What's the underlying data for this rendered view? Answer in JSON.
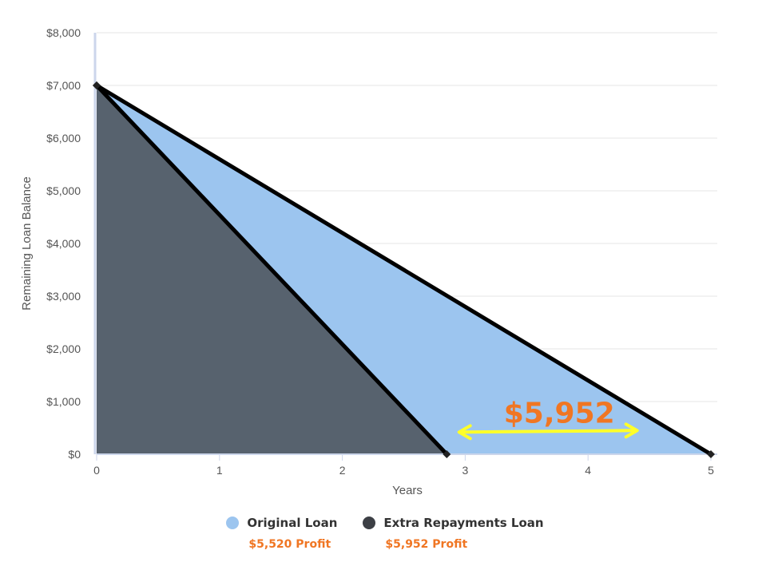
{
  "chart_data": {
    "type": "area",
    "xlabel": "Years",
    "ylabel": "Remaining Loan Balance",
    "xlim": [
      0,
      5
    ],
    "ylim": [
      0,
      8000
    ],
    "x_ticks": [
      "0",
      "1",
      "2",
      "3",
      "4",
      "5"
    ],
    "y_ticks": [
      "$0",
      "$1,000",
      "$2,000",
      "$3,000",
      "$4,000",
      "$5,000",
      "$6,000",
      "$7,000",
      "$8,000"
    ],
    "y_tick_values": [
      0,
      1000,
      2000,
      3000,
      4000,
      5000,
      6000,
      7000,
      8000
    ],
    "grid": true,
    "legend_position": "bottom",
    "series": [
      {
        "name": "Original Loan",
        "color": "#9cc5ef",
        "profit": "$5,520 Profit",
        "points": [
          [
            0,
            7000
          ],
          [
            5,
            0
          ]
        ]
      },
      {
        "name": "Extra Repayments Loan",
        "color": "#57626e",
        "profit": "$5,952 Profit",
        "points": [
          [
            0,
            7000
          ],
          [
            2.85,
            0
          ]
        ]
      }
    ],
    "annotation": {
      "text": "$5,952",
      "x_from": 2.95,
      "x_to": 4.4,
      "y": 450,
      "color": "#f07623",
      "arrow_color": "#ffff2a"
    }
  }
}
